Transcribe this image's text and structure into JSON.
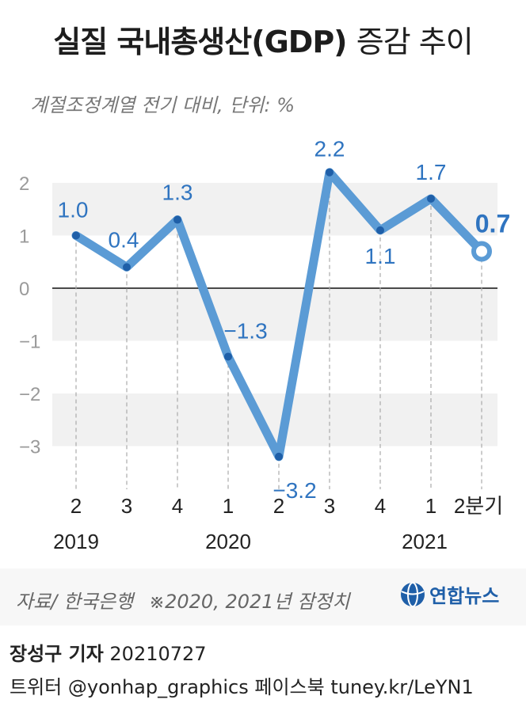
{
  "header": {
    "title_main": "실질 국내총생산(GDP)",
    "title_tail": "증감 추이",
    "subtitle": "계절조정계열  전기 대비, 단위: %"
  },
  "colors": {
    "line": "#5b9bd5",
    "marker": "#1f5fa8",
    "label": "#2f74c0",
    "band": "#f1f1f1"
  },
  "chart_data": {
    "type": "line",
    "title": "실질 국내총생산(GDP) 증감 추이",
    "unit": "%",
    "x": [
      "2019 Q2",
      "2019 Q3",
      "2019 Q4",
      "2020 Q1",
      "2020 Q2",
      "2020 Q3",
      "2020 Q4",
      "2021 Q1",
      "2021 Q2"
    ],
    "x_tick_labels": [
      "2",
      "3",
      "4",
      "1",
      "2",
      "3",
      "4",
      "1",
      "2분기"
    ],
    "year_labels": [
      "2019",
      "2020",
      "2021"
    ],
    "values": [
      1.0,
      0.4,
      1.3,
      -1.3,
      -3.2,
      2.2,
      1.1,
      1.7,
      0.7
    ],
    "data_labels": [
      "1.0",
      "0.4",
      "1.3",
      "−1.3",
      "−3.2",
      "2.2",
      "1.1",
      "1.7",
      "0.7"
    ],
    "y_ticks": [
      2,
      1,
      0,
      -1,
      -2,
      -3
    ],
    "y_tick_labels": [
      "2",
      "1",
      "0",
      "−1",
      "−2",
      "−3"
    ],
    "ylim": [
      -3.2,
      2.2
    ],
    "grid": false,
    "legend": "none"
  },
  "footer": {
    "source": "자료/ 한국은행",
    "note": "※2020, 2021년 잠정치",
    "logo_text": "연합뉴스",
    "credit_name": "장성구 기자",
    "credit_date": "20210727",
    "social": "트위터 @yonhap_graphics  페이스북 tuney.kr/LeYN1"
  }
}
